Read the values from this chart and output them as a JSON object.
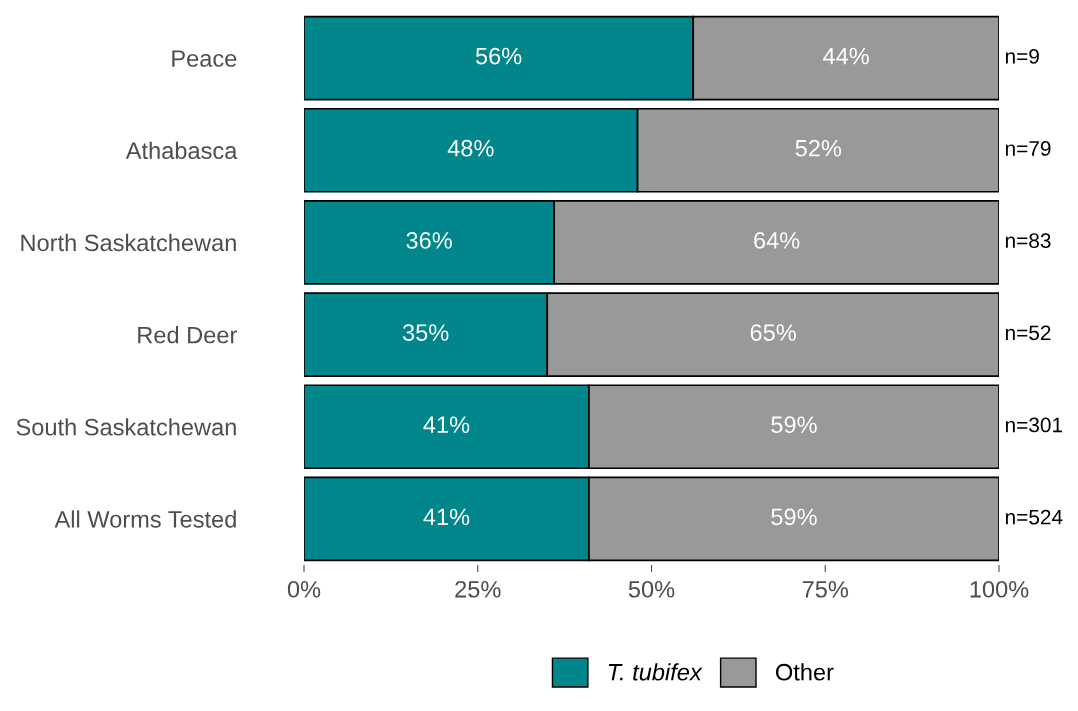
{
  "chart_data": {
    "type": "bar",
    "orientation": "horizontal",
    "stacked": true,
    "categories": [
      "Peace",
      "Athabasca",
      "North Saskatchewan",
      "Red Deer",
      "South Saskatchewan",
      "All Worms Tested"
    ],
    "series": [
      {
        "name": "T. tubifex",
        "color": "#00868b",
        "values": [
          56,
          48,
          36,
          35,
          41,
          41
        ],
        "value_labels": [
          "56%",
          "48%",
          "36%",
          "35%",
          "41%",
          "41%"
        ]
      },
      {
        "name": "Other",
        "color": "#999999",
        "values": [
          44,
          52,
          64,
          65,
          59,
          59
        ],
        "value_labels": [
          "44%",
          "52%",
          "64%",
          "65%",
          "59%",
          "59%"
        ]
      }
    ],
    "xlim": [
      0,
      100
    ],
    "xticks": [
      {
        "value": 0,
        "label": "0%"
      },
      {
        "value": 25,
        "label": "25%"
      },
      {
        "value": 50,
        "label": "50%"
      },
      {
        "value": 75,
        "label": "75%"
      },
      {
        "value": 100,
        "label": "100%"
      }
    ],
    "annotations": [
      "n=9",
      "n=79",
      "n=83",
      "n=52",
      "n=301",
      "n=524"
    ],
    "grid": false,
    "legend": "bottom"
  }
}
